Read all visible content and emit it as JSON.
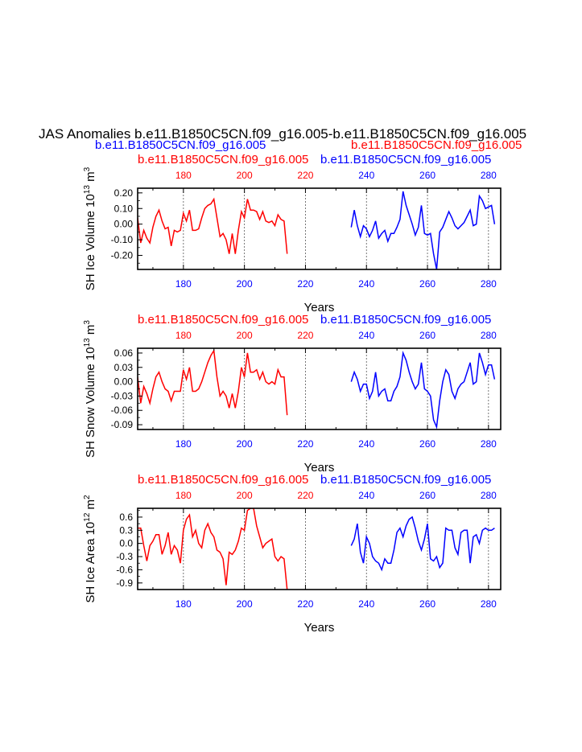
{
  "title": "JAS Anomalies b.e11.B1850C5CN.f09_g16.005-b.e11.B1850C5CN.f09_g16.005",
  "subtitle_left": "b.e11.B1850C5CN.f09_g16.005",
  "subtitle_right": "b.e11.B1850C5CN.f09_g16.005",
  "colors": {
    "case1": "#ff0000",
    "case2": "#0000ff",
    "axis": "#000000"
  },
  "chart_data": [
    {
      "type": "line",
      "ylabel": "SH Ice Volume 10",
      "ylabel_exp": "13",
      "ylabel_unit": " m",
      "ylabel_unit_exp": "3",
      "xlabel": "Years",
      "xlim": [
        165,
        284
      ],
      "ylim": [
        -0.29,
        0.23
      ],
      "yticks": [
        0.2,
        0.1,
        0.0,
        -0.1,
        -0.2
      ],
      "ytick_labels": [
        "0.20",
        "0.10",
        "0.00",
        "-0.10",
        "-0.20"
      ],
      "top_label_left": "b.e11.B1850C5CN.f09_g16.005",
      "top_label_right": "b.e11.B1850C5CN.f09_g16.005",
      "top_ticks": [
        "180",
        "200",
        "220",
        "240",
        "260",
        "280"
      ],
      "bottom_ticks": [
        "180",
        "200",
        "220",
        "240",
        "260",
        "280"
      ],
      "series": [
        {
          "x0": 165,
          "values": [
            0.04,
            -0.12,
            -0.04,
            -0.09,
            -0.12,
            -0.02,
            0.05,
            0.09,
            0.02,
            -0.03,
            -0.02,
            -0.14,
            -0.04,
            -0.05,
            -0.04,
            0.07,
            0.02,
            0.09,
            -0.04,
            -0.04,
            -0.03,
            0.04,
            0.1,
            0.12,
            0.13,
            0.16,
            0.04,
            -0.08,
            -0.06,
            -0.1,
            -0.19,
            -0.06,
            -0.19,
            -0.04,
            0.08,
            0.04,
            0.16,
            0.09,
            0.09,
            0.08,
            0.03,
            0.08,
            0.02,
            0.01,
            0.02,
            -0.01,
            0.06,
            0.03,
            0.02,
            -0.19
          ]
        },
        {
          "x0": 235,
          "values": [
            -0.02,
            0.09,
            -0.01,
            -0.08,
            -0.01,
            -0.03,
            -0.08,
            -0.04,
            0.02,
            -0.09,
            -0.06,
            -0.04,
            -0.11,
            -0.06,
            -0.06,
            -0.02,
            0.03,
            0.21,
            0.12,
            0.06,
            0.0,
            -0.07,
            -0.02,
            0.12,
            -0.06,
            -0.07,
            -0.06,
            -0.19,
            -0.29,
            -0.05,
            -0.02,
            0.03,
            0.08,
            0.04,
            -0.01,
            -0.03,
            -0.01,
            0.01,
            0.05,
            0.09,
            -0.01,
            0.0,
            0.18,
            0.15,
            0.1,
            0.11,
            0.12,
            0.0
          ]
        }
      ]
    },
    {
      "type": "line",
      "ylabel": "SH Snow Volume 10",
      "ylabel_exp": "13",
      "ylabel_unit": " m",
      "ylabel_unit_exp": "3",
      "xlabel": "Years",
      "xlim": [
        165,
        284
      ],
      "ylim": [
        -0.1,
        0.07
      ],
      "yticks": [
        0.06,
        0.03,
        0.0,
        -0.03,
        -0.06,
        -0.09
      ],
      "ytick_labels": [
        "0.06",
        "0.03",
        "0.00",
        "-0.03",
        "-0.06",
        "-0.09"
      ],
      "top_label_left": "b.e11.B1850C5CN.f09_g16.005",
      "top_label_right": "b.e11.B1850C5CN.f09_g16.005",
      "top_ticks": [
        "180",
        "200",
        "220",
        "240",
        "260",
        "280"
      ],
      "bottom_ticks": [
        "180",
        "200",
        "220",
        "240",
        "260",
        "280"
      ],
      "series": [
        {
          "x0": 165,
          "values": [
            0.01,
            -0.045,
            -0.01,
            -0.025,
            -0.045,
            -0.015,
            0.01,
            0.02,
            0.0,
            -0.015,
            -0.02,
            -0.04,
            -0.02,
            -0.02,
            -0.02,
            0.025,
            0.005,
            0.03,
            -0.02,
            -0.02,
            -0.015,
            0.0,
            0.02,
            0.04,
            0.055,
            0.065,
            0.01,
            -0.03,
            -0.02,
            -0.03,
            -0.055,
            -0.025,
            -0.055,
            -0.02,
            0.03,
            0.01,
            0.06,
            0.02,
            0.02,
            0.025,
            0.005,
            0.02,
            0.0,
            -0.005,
            0.0,
            -0.005,
            0.025,
            0.01,
            0.01,
            -0.07
          ]
        },
        {
          "x0": 235,
          "values": [
            0.0,
            0.02,
            0.005,
            -0.02,
            -0.005,
            -0.005,
            -0.035,
            -0.02,
            0.02,
            -0.03,
            -0.02,
            -0.015,
            -0.04,
            -0.04,
            -0.02,
            -0.01,
            0.01,
            0.06,
            0.045,
            0.02,
            0.0,
            -0.015,
            -0.005,
            0.04,
            -0.015,
            -0.02,
            -0.03,
            -0.08,
            -0.095,
            -0.04,
            0.0,
            0.025,
            0.015,
            -0.02,
            -0.035,
            -0.015,
            -0.005,
            0.0,
            0.02,
            0.04,
            -0.005,
            0.0,
            0.06,
            0.04,
            0.015,
            0.035,
            0.035,
            0.005
          ]
        }
      ]
    },
    {
      "type": "line",
      "ylabel": "SH Ice Area 10",
      "ylabel_exp": "12",
      "ylabel_unit": " m",
      "ylabel_unit_exp": "2",
      "xlabel": "Years",
      "xlim": [
        165,
        284
      ],
      "ylim": [
        -1.05,
        0.8
      ],
      "yticks": [
        0.6,
        0.3,
        0.0,
        -0.3,
        -0.6,
        -0.9
      ],
      "ytick_labels": [
        "0.6",
        "0.3",
        "0.0",
        "-0.3",
        "-0.6",
        "-0.9"
      ],
      "top_label_left": "b.e11.B1850C5CN.f09_g16.005",
      "top_label_right": "b.e11.B1850C5CN.f09_g16.005",
      "top_ticks": [
        "180",
        "200",
        "220",
        "240",
        "260",
        "280"
      ],
      "bottom_ticks": [
        "180",
        "200",
        "220",
        "240",
        "260",
        "280"
      ],
      "series": [
        {
          "x0": 165,
          "values": [
            0.35,
            0.35,
            -0.05,
            -0.4,
            -0.05,
            0.05,
            0.2,
            0.2,
            -0.25,
            -0.05,
            0.25,
            -0.25,
            -0.05,
            -0.15,
            -0.45,
            0.3,
            0.55,
            0.65,
            0.15,
            0.3,
            0.0,
            -0.1,
            0.3,
            0.45,
            0.25,
            0.15,
            -0.15,
            -0.2,
            -0.35,
            -0.95,
            -0.2,
            -0.25,
            -0.15,
            0.05,
            0.35,
            0.3,
            0.75,
            0.8,
            0.8,
            0.4,
            0.15,
            -0.1,
            0.0,
            0.05,
            0.1,
            -0.3,
            -0.4,
            -0.3,
            -0.35,
            -1.05
          ]
        },
        {
          "x0": 235,
          "values": [
            -0.05,
            0.1,
            0.45,
            -0.2,
            -0.45,
            0.15,
            0.0,
            -0.3,
            -0.4,
            -0.45,
            -0.6,
            -0.35,
            -0.45,
            -0.45,
            -0.15,
            0.25,
            0.35,
            0.15,
            0.4,
            0.55,
            0.6,
            0.35,
            0.05,
            -0.15,
            0.1,
            0.45,
            -0.35,
            -0.4,
            -0.3,
            -0.55,
            -0.45,
            0.35,
            0.3,
            0.3,
            -0.1,
            -0.25,
            0.25,
            0.3,
            0.3,
            -0.45,
            0.15,
            0.2,
            0.0,
            0.3,
            0.35,
            0.3,
            0.3,
            0.35
          ]
        }
      ]
    }
  ]
}
